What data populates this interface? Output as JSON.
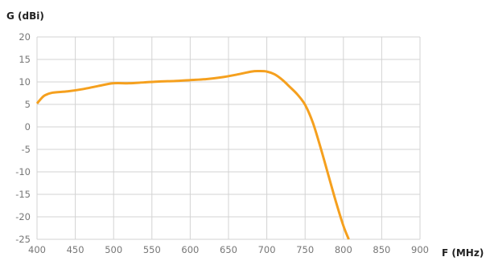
{
  "chart_data": {
    "type": "line",
    "title": "",
    "ylabel": "G (dBi)",
    "xlabel": "F (MHz)",
    "xlim": [
      400,
      900
    ],
    "ylim": [
      -25,
      20
    ],
    "x_ticks": [
      400,
      450,
      500,
      550,
      600,
      650,
      700,
      750,
      800,
      850,
      900
    ],
    "x_tick_labels": [
      "400",
      "450",
      "500",
      "550",
      "600",
      "650",
      "700",
      "750",
      "800",
      "850",
      "900"
    ],
    "y_ticks": [
      20,
      15,
      10,
      5,
      0,
      -5,
      -10,
      -15,
      -20,
      -25
    ],
    "y_tick_labels": [
      "20",
      "15",
      "10",
      "5",
      "0",
      "-5",
      "-10",
      "-15",
      "-20",
      "-25"
    ],
    "grid": true,
    "series": [
      {
        "color": "#f5a01e",
        "x": [
          400,
          405,
          410,
          420,
          440,
          460,
          480,
          500,
          520,
          540,
          560,
          580,
          600,
          620,
          640,
          660,
          680,
          690,
          700,
          710,
          720,
          730,
          740,
          750,
          760,
          770,
          780,
          790,
          800,
          807
        ],
        "y": [
          5.2,
          6.2,
          7.0,
          7.6,
          7.9,
          8.4,
          9.1,
          9.7,
          9.7,
          9.9,
          10.1,
          10.2,
          10.4,
          10.6,
          11.0,
          11.6,
          12.3,
          12.4,
          12.3,
          11.7,
          10.5,
          8.9,
          7.2,
          4.9,
          1.0,
          -4.5,
          -10.5,
          -16.5,
          -22.0,
          -25.0
        ]
      }
    ]
  }
}
